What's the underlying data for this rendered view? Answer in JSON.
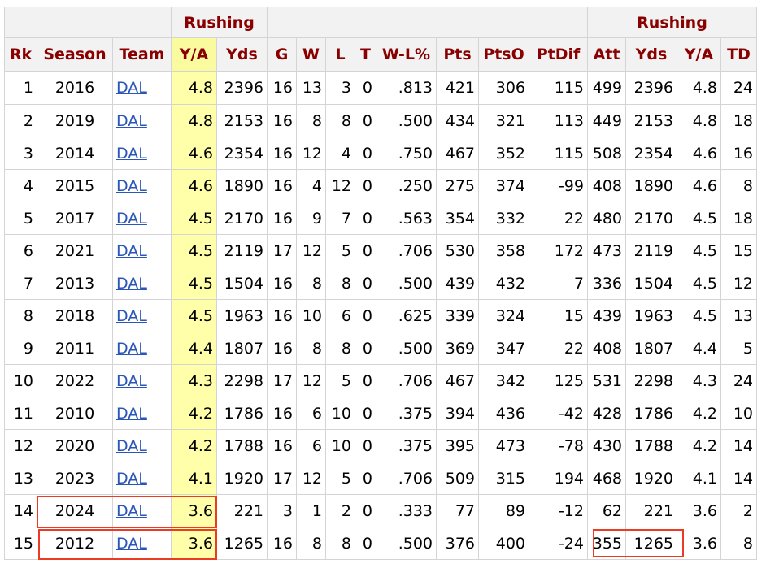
{
  "over_headers": {
    "rushing_left": "Rushing",
    "rushing_right": "Rushing"
  },
  "columns": [
    "Rk",
    "Season",
    "Team",
    "Y/A",
    "Yds",
    "G",
    "W",
    "L",
    "T",
    "W-L%",
    "Pts",
    "PtsO",
    "PtDif",
    "Att",
    "Yds",
    "Y/A",
    "TD"
  ],
  "rows": [
    [
      "1",
      "2016",
      "DAL",
      "4.8",
      "2396",
      "16",
      "13",
      "3",
      "0",
      ".813",
      "421",
      "306",
      "115",
      "499",
      "2396",
      "4.8",
      "24"
    ],
    [
      "2",
      "2019",
      "DAL",
      "4.8",
      "2153",
      "16",
      "8",
      "8",
      "0",
      ".500",
      "434",
      "321",
      "113",
      "449",
      "2153",
      "4.8",
      "18"
    ],
    [
      "3",
      "2014",
      "DAL",
      "4.6",
      "2354",
      "16",
      "12",
      "4",
      "0",
      ".750",
      "467",
      "352",
      "115",
      "508",
      "2354",
      "4.6",
      "16"
    ],
    [
      "4",
      "2015",
      "DAL",
      "4.6",
      "1890",
      "16",
      "4",
      "12",
      "0",
      ".250",
      "275",
      "374",
      "-99",
      "408",
      "1890",
      "4.6",
      "8"
    ],
    [
      "5",
      "2017",
      "DAL",
      "4.5",
      "2170",
      "16",
      "9",
      "7",
      "0",
      ".563",
      "354",
      "332",
      "22",
      "480",
      "2170",
      "4.5",
      "18"
    ],
    [
      "6",
      "2021",
      "DAL",
      "4.5",
      "2119",
      "17",
      "12",
      "5",
      "0",
      ".706",
      "530",
      "358",
      "172",
      "473",
      "2119",
      "4.5",
      "15"
    ],
    [
      "7",
      "2013",
      "DAL",
      "4.5",
      "1504",
      "16",
      "8",
      "8",
      "0",
      ".500",
      "439",
      "432",
      "7",
      "336",
      "1504",
      "4.5",
      "12"
    ],
    [
      "8",
      "2018",
      "DAL",
      "4.5",
      "1963",
      "16",
      "10",
      "6",
      "0",
      ".625",
      "339",
      "324",
      "15",
      "439",
      "1963",
      "4.5",
      "13"
    ],
    [
      "9",
      "2011",
      "DAL",
      "4.4",
      "1807",
      "16",
      "8",
      "8",
      "0",
      ".500",
      "369",
      "347",
      "22",
      "408",
      "1807",
      "4.4",
      "5"
    ],
    [
      "10",
      "2022",
      "DAL",
      "4.3",
      "2298",
      "17",
      "12",
      "5",
      "0",
      ".706",
      "467",
      "342",
      "125",
      "531",
      "2298",
      "4.3",
      "24"
    ],
    [
      "11",
      "2010",
      "DAL",
      "4.2",
      "1786",
      "16",
      "6",
      "10",
      "0",
      ".375",
      "394",
      "436",
      "-42",
      "428",
      "1786",
      "4.2",
      "10"
    ],
    [
      "12",
      "2020",
      "DAL",
      "4.2",
      "1788",
      "16",
      "6",
      "10",
      "0",
      ".375",
      "395",
      "473",
      "-78",
      "430",
      "1788",
      "4.2",
      "14"
    ],
    [
      "13",
      "2023",
      "DAL",
      "4.1",
      "1920",
      "17",
      "12",
      "5",
      "0",
      ".706",
      "509",
      "315",
      "194",
      "468",
      "1920",
      "4.1",
      "14"
    ],
    [
      "14",
      "2024",
      "DAL",
      "3.6",
      "221",
      "3",
      "1",
      "2",
      "0",
      ".333",
      "77",
      "89",
      "-12",
      "62",
      "221",
      "3.6",
      "2"
    ],
    [
      "15",
      "2012",
      "DAL",
      "3.6",
      "1265",
      "16",
      "8",
      "8",
      "0",
      ".500",
      "376",
      "400",
      "-24",
      "355",
      "1265",
      "3.6",
      "8"
    ]
  ],
  "colors": {
    "header_text": "#8a0000",
    "sorted_column": "#ffffaa",
    "highlight_box": "#ec3b23",
    "team_link": "#2a56b8"
  }
}
